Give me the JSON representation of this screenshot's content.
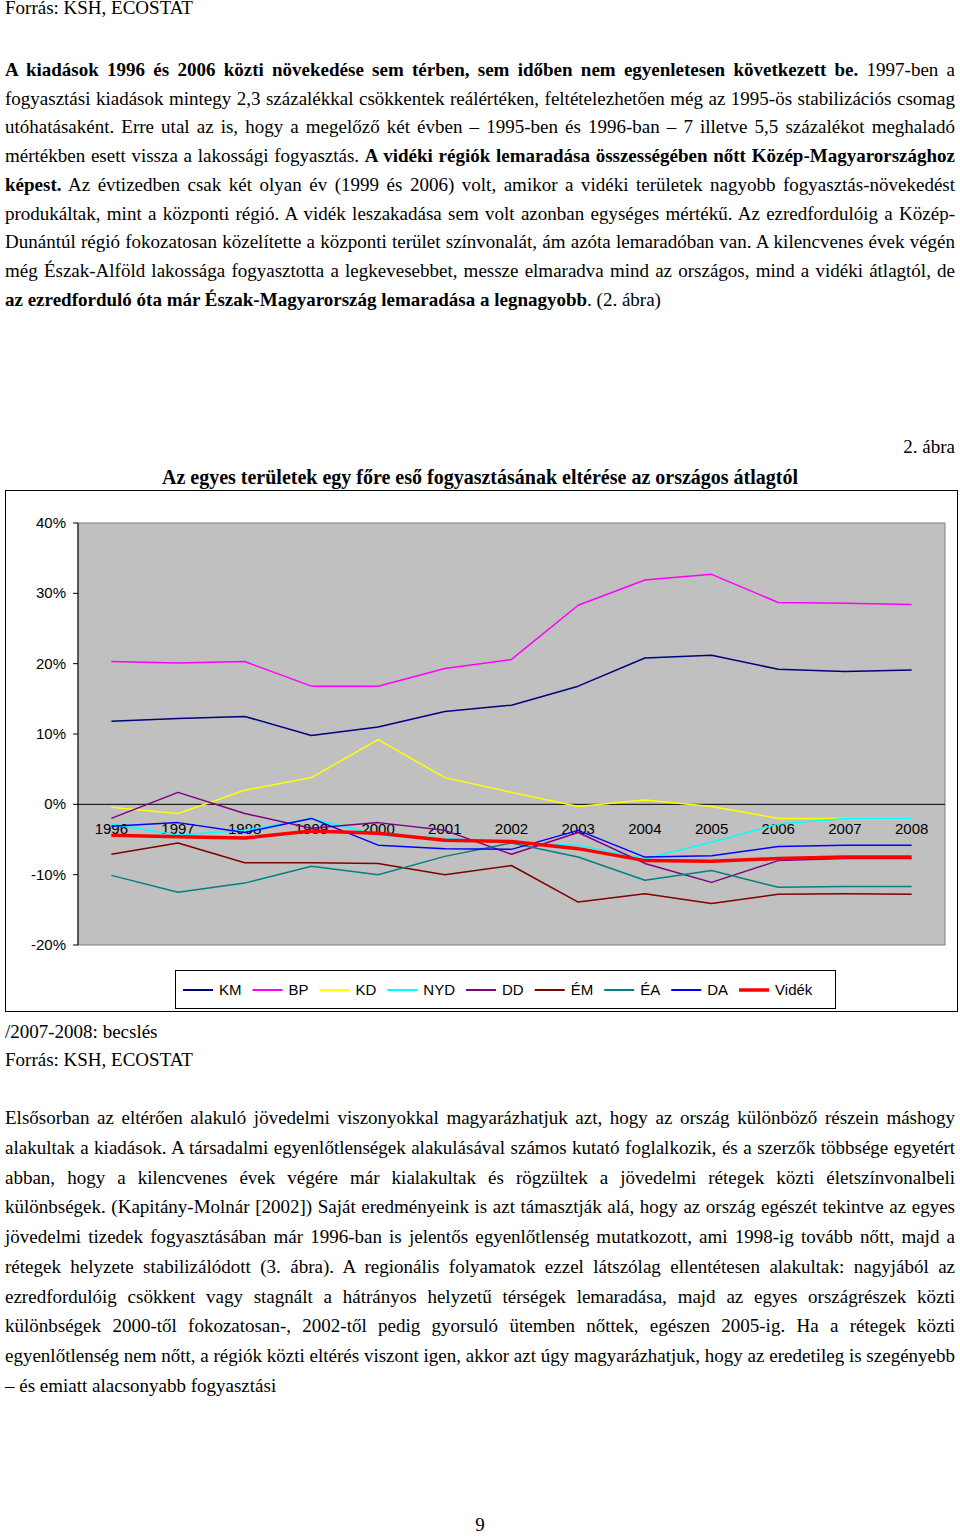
{
  "document": {
    "header": "Forrás: KSH, ECOSTAT",
    "paragraphs": [
      {
        "runs": [
          {
            "text": "A kiadások 1996 és 2006 közti növekedése sem térben, sem időben nem egyenletesen következett be.",
            "bold": true
          },
          {
            "text": " 1997-ben a fogyasztási kiadások mintegy 2,3 százalékkal csökkentek reálértéken, feltételezhetően még az 1995-ös stabilizációs csomag utóhatásaként. Erre utal az is, hogy a megelőző két évben – 1995-ben és 1996-ban – 7 illetve 5,5 százalékot meghaladó mértékben esett vissza a lakossági fogyasztás. ",
            "bold": false
          },
          {
            "text": "A vidéki régiók lemaradása összességében nőtt Közép-Magyarországhoz képest.",
            "bold": true
          },
          {
            "text": " Az évtizedben csak két olyan év (1999 és 2006) volt, amikor a vidéki területek nagyobb fogyasztás-növekedést produkáltak, mint a központi régió. A vidék leszakadása sem volt azonban egységes mértékű. Az ezredfordulóig a Közép-Dunántúl régió fokozatosan közelítette a központi terület színvonalát, ám azóta lemaradóban van. A kilencvenes évek végén még Észak-Alföld lakossága fogyasztotta a legkevesebbet, messze elmaradva mind az országos, mind a vidéki átlagtól, de ",
            "bold": false
          },
          {
            "text": "az ezredforduló óta már Észak-Magyarország lemaradása a legnagyobb",
            "bold": true
          },
          {
            "text": ". (2. ábra)",
            "bold": false
          }
        ]
      },
      {
        "runs": [
          {
            "text": "Elsősorban az eltérően alakuló jövedelmi viszonyokkal magyarázhatjuk azt, hogy az ország különböző részein máshogy alakultak a kiadások. A társadalmi egyenlőtlenségek alakulásával számos kutató foglalkozik, és a szerzők többsége egyetért abban, hogy a kilencvenes évek végére már kialakultak és rögzültek a jövedelmi rétegek közti életszínvonalbeli különbségek. (Kapitány-Molnár [2002]) Saját eredményeink is azt támasztják alá, hogy az ország egészét tekintve az egyes jövedelmi tizedek fogyasztásában már 1996-ban is jelentős egyenlőtlenség mutatkozott, ami 1998-ig tovább nőtt, majd a rétegek helyzete stabilizálódott (3. ábra). A regionális folyamatok ezzel látszólag ellentétesen alakultak: nagyjából az ezredfordulóig csökkent vagy stagnált a hátrányos helyzetű térségek lemaradása, majd az egyes országrészek közti különbségek 2000-től fokozatosan-, 2002-től pedig gyorsuló ütemben nőttek, egészen 2005-ig. Ha a rétegek közti egyenlőtlenség nem nőtt, a régiók közti eltérés viszont igen, akkor azt úgy magyarázhatjuk, hogy az eredetileg is szegényebb – és emiatt alacsonyabb fogyasztási",
            "bold": false
          }
        ]
      }
    ],
    "figure_label": "2. ábra",
    "figure_notes": [
      "/2007-2008: becslés",
      "Forrás: KSH, ECOSTAT"
    ],
    "page_number": "9"
  },
  "chart_data": {
    "type": "line",
    "title": "Az egyes területek egy főre eső fogyasztásának eltérése az országos átlagtól",
    "categories": [
      "1996",
      "1997",
      "1998",
      "1999",
      "2000",
      "2001",
      "2002",
      "2003",
      "2004",
      "2005",
      "2006",
      "2007",
      "2008"
    ],
    "series": [
      {
        "name": "KM",
        "color": "#000080",
        "values": [
          11.8,
          12.2,
          12.5,
          9.8,
          11.0,
          13.2,
          14.1,
          16.8,
          20.8,
          21.2,
          19.2,
          18.9,
          19.1
        ]
      },
      {
        "name": "BP",
        "color": "#ff00ff",
        "values": [
          20.3,
          20.1,
          20.3,
          16.8,
          16.8,
          19.3,
          20.6,
          28.3,
          31.9,
          32.7,
          28.7,
          28.6,
          28.4
        ]
      },
      {
        "name": "KD",
        "color": "#ffff00",
        "values": [
          -0.4,
          -1.3,
          2.0,
          3.8,
          9.2,
          3.8,
          1.7,
          -0.3,
          0.6,
          -0.3,
          -2.0,
          -2.0,
          -2.0
        ]
      },
      {
        "name": "NYD",
        "color": "#00ffff",
        "values": [
          -2.8,
          -4.4,
          -3.7,
          -2.0,
          -4.4,
          -4.8,
          -5.5,
          -5.8,
          -7.7,
          -5.4,
          -2.8,
          -2.0,
          -2.0
        ]
      },
      {
        "name": "DD",
        "color": "#800080",
        "values": [
          -2.0,
          1.7,
          -1.3,
          -3.4,
          -2.6,
          -3.7,
          -7.1,
          -4.0,
          -8.4,
          -11.1,
          -8.0,
          -7.7,
          -7.7
        ]
      },
      {
        "name": "ÉM",
        "color": "#800000",
        "values": [
          -7.1,
          -5.5,
          -8.3,
          -8.3,
          -8.4,
          -10.0,
          -8.7,
          -13.9,
          -12.7,
          -14.1,
          -12.8,
          -12.7,
          -12.8
        ]
      },
      {
        "name": "ÉA",
        "color": "#008080",
        "values": [
          -10.1,
          -12.5,
          -11.2,
          -8.8,
          -10.0,
          -7.4,
          -5.5,
          -7.5,
          -10.8,
          -9.4,
          -11.8,
          -11.7,
          -11.7
        ]
      },
      {
        "name": "DA",
        "color": "#0000ff",
        "values": [
          -3.1,
          -2.6,
          -4.0,
          -2.0,
          -5.8,
          -6.3,
          -6.4,
          -3.7,
          -7.5,
          -7.3,
          -6.0,
          -5.8,
          -5.8
        ]
      },
      {
        "name": "Vidék",
        "color": "#ff0000",
        "line_style": "thick",
        "values": [
          -4.4,
          -4.6,
          -4.8,
          -3.8,
          -4.1,
          -5.1,
          -5.3,
          -6.3,
          -8.0,
          -8.1,
          -7.7,
          -7.5,
          -7.5
        ]
      }
    ],
    "ylim": [
      -20,
      40
    ],
    "yticks": [
      {
        "value": -20,
        "label": "-20%"
      },
      {
        "value": -10,
        "label": "-10%"
      },
      {
        "value": 0,
        "label": "0%"
      },
      {
        "value": 10,
        "label": "10%"
      },
      {
        "value": 20,
        "label": "20%"
      },
      {
        "value": 30,
        "label": "30%"
      },
      {
        "value": 40,
        "label": "40%"
      }
    ],
    "grid": false,
    "legend": "bottom"
  }
}
